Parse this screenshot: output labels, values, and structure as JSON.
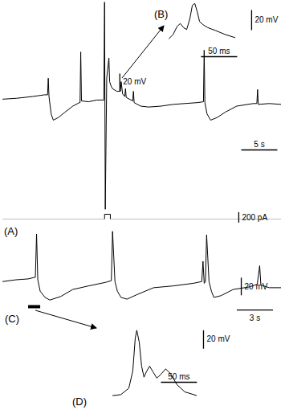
{
  "chart_data": [
    {
      "type": "line",
      "color": "#000000",
      "tick_labels": false,
      "x": [
        0,
        1.9,
        4.1,
        5.8,
        6.2,
        6.3,
        6.4,
        6.7,
        7.0,
        7.7,
        8.6,
        9.7,
        10.6,
        10.7,
        10.8,
        10.9,
        11.9,
        13.0,
        14.0,
        14.1,
        14.2,
        14.4,
        14.7,
        14.8,
        15.0,
        15.2,
        15.8,
        16.3,
        16.4,
        16.6,
        16.9,
        17.0,
        17.1,
        18.0,
        18.1,
        18.2,
        19.1,
        20.2,
        21.9,
        23.6,
        25.2,
        26.9,
        27.8,
        27.9,
        28.0,
        28.3,
        28.8,
        29.7,
        30.8,
        32.4,
        34.7,
        35.2,
        35.3,
        35.4,
        36.9,
        38.6
      ],
      "values": [
        3,
        4,
        6,
        8,
        8,
        27,
        6,
        -14,
        -21,
        -18,
        -12,
        -5,
        -1,
        -1,
        57,
        1,
        0,
        2,
        2,
        114,
        -123,
        27,
        50,
        23,
        18,
        15,
        12,
        12,
        23,
        9,
        6,
        15,
        5,
        1,
        12,
        -1,
        -5,
        -6,
        -5,
        -3,
        -2,
        -1,
        0,
        59,
        -1,
        -14,
        -21,
        -18,
        -12,
        -5,
        -2,
        -2,
        14,
        -3,
        -2,
        -3
      ],
      "xlim": [
        0,
        38.6
      ],
      "ylim": [
        -125,
        116
      ],
      "scale_bars": [
        {
          "axis": "y",
          "value": 20,
          "label": "20 mV"
        },
        {
          "axis": "x",
          "value": 5,
          "label": "5 s"
        }
      ]
    },
    {
      "type": "line",
      "title": "(A)",
      "color": "#000000",
      "tick_labels": false,
      "x": [
        0,
        14.1,
        14.1,
        14.9,
        14.9,
        38.6
      ],
      "values": [
        0,
        0,
        100,
        100,
        0,
        0
      ],
      "xlim": [
        0,
        38.6
      ],
      "ylim": [
        0,
        100
      ],
      "scale_bars": [
        {
          "axis": "y",
          "value": 200,
          "label": "200 pA"
        }
      ]
    },
    {
      "type": "line",
      "title": "(B)",
      "color": "#000000",
      "tick_labels": false,
      "x": [
        0,
        5.6,
        11.1,
        15.6,
        20,
        24.4,
        28.9,
        32.2,
        35.6,
        38.9,
        42.2,
        46.7,
        53.3,
        64.4,
        77.8,
        91.1
      ],
      "values": [
        2,
        6,
        14,
        17,
        13,
        11,
        22,
        35,
        37,
        29,
        19,
        16,
        13,
        10,
        6,
        3
      ],
      "xlim": [
        0,
        92
      ],
      "ylim": [
        0,
        40
      ],
      "scale_bars": [
        {
          "axis": "y",
          "value": 20,
          "label": "20 mV"
        },
        {
          "axis": "x",
          "value": 50,
          "label": "50 ms"
        }
      ]
    },
    {
      "type": "line",
      "title": "(C)",
      "color": "#000000",
      "tick_labels": false,
      "x": [
        0,
        1.1,
        2.1,
        2.7,
        2.8,
        2.9,
        3.1,
        3.5,
        3.9,
        4.8,
        5.8,
        7.1,
        8.5,
        9.0,
        9.1,
        9.3,
        9.5,
        9.8,
        10.3,
        11.1,
        12.5,
        14.1,
        15.8,
        16.5,
        16.6,
        16.7,
        16.8,
        16.9,
        17.1,
        17.3,
        17.5,
        18.1,
        19.1,
        20.5,
        21.1,
        21.3,
        21.4,
        22.1,
        23.1
      ],
      "values": [
        2,
        4,
        5,
        7,
        56,
        4,
        -9,
        -16,
        -19,
        -15,
        -7,
        -3,
        1,
        3,
        59,
        2,
        -9,
        -16,
        -18,
        -13,
        -5,
        -3,
        0,
        2,
        25,
        0,
        2,
        55,
        2,
        -9,
        -16,
        -14,
        -7,
        -4,
        -1,
        20,
        -2,
        -5,
        -5
      ],
      "xlim": [
        0,
        23.1
      ],
      "ylim": [
        -22,
        62
      ],
      "highlight": [
        2.1,
        3.1
      ],
      "scale_bars": [
        {
          "axis": "y",
          "value": 20,
          "label": "20 mV"
        },
        {
          "axis": "x",
          "value": 3,
          "label": "3 s"
        }
      ]
    },
    {
      "type": "line",
      "title": "(D)",
      "color": "#000000",
      "tick_labels": false,
      "x": [
        0,
        11.1,
        22.2,
        27.8,
        31.1,
        33.3,
        36.7,
        40,
        43.3,
        46.7,
        51.1,
        55.6,
        61.1,
        66.7,
        73.3,
        80,
        88.9,
        100,
        116.7
      ],
      "values": [
        3,
        4,
        11,
        30,
        65,
        74,
        61,
        35,
        23,
        29,
        35,
        29,
        22,
        26,
        32,
        27,
        15,
        7,
        3
      ],
      "xlim": [
        0,
        117
      ],
      "ylim": [
        0,
        76
      ],
      "scale_bars": [
        {
          "axis": "y",
          "value": 20,
          "label": "20 mV"
        },
        {
          "axis": "x",
          "value": 50,
          "label": "50 ms"
        }
      ]
    }
  ]
}
